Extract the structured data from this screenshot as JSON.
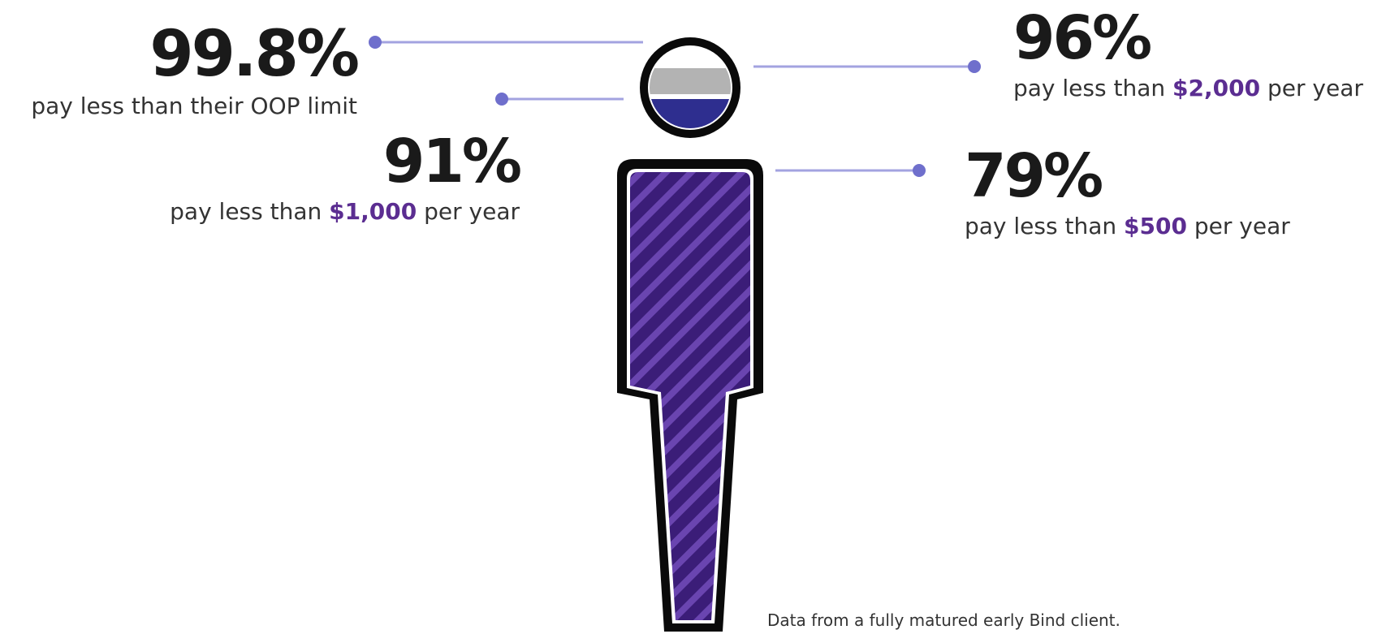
{
  "stats": {
    "oop": {
      "value": "99.8%",
      "caption": "pay less than their OOP limit"
    },
    "under_1000": {
      "value": "91%",
      "caption_before": "pay less than ",
      "amount": "$1,000",
      "caption_after": " per year"
    },
    "under_2000": {
      "value": "96%",
      "caption_before": "pay less than ",
      "amount": "$2,000",
      "caption_after": " per year"
    },
    "under_500": {
      "value": "79%",
      "caption_before": "pay less than ",
      "amount": "$500",
      "caption_after": " per year"
    }
  },
  "footnote": "Data from a fully matured early Bind client.",
  "colors": {
    "accent_purple": "#5b2d91",
    "body_fill": "#3b1d78",
    "stripe": "#6a45b0",
    "head_gray": "#b3b3b3",
    "head_navy": "#2e2e8f",
    "connector": "#8f8fd8",
    "dot": "#6f6fcc"
  }
}
